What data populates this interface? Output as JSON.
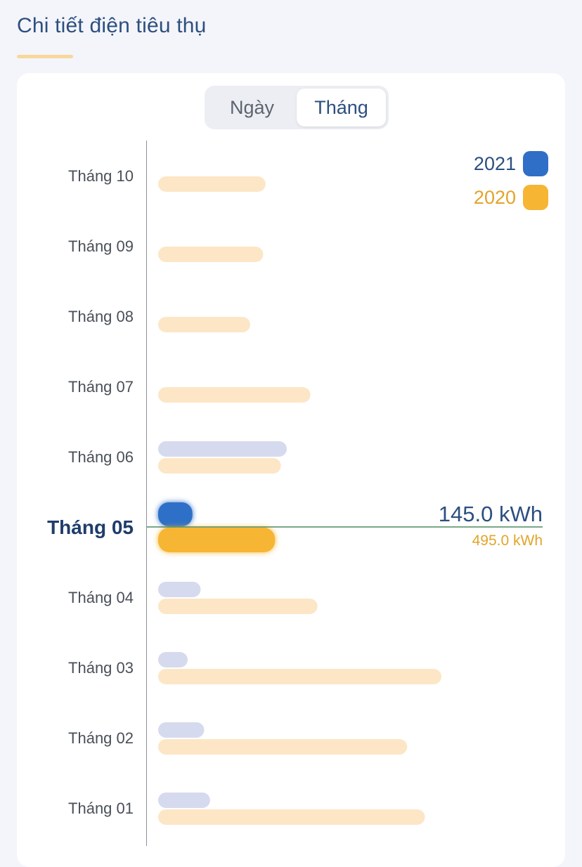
{
  "header": {
    "title": "Chi tiết điện tiêu thụ"
  },
  "segmented_control": {
    "options": [
      "Ngày",
      "Tháng"
    ],
    "selected": "Tháng"
  },
  "colors": {
    "series_2021": "#2f6fc7",
    "series_2020": "#f6b533",
    "series_2021_faded": "#d6daee",
    "series_2020_faded": "#fde6c6",
    "selected_line": "#4f8a5e",
    "title": "#2c4f7f"
  },
  "legend": [
    {
      "label": "2021",
      "color": "#2f6fc7"
    },
    {
      "label": "2020",
      "color": "#f6b533"
    }
  ],
  "selected": {
    "month": "Tháng 05",
    "value_2021_text": "145.0 kWh",
    "value_2020_text": "495.0 kWh"
  },
  "chart_data": {
    "type": "bar",
    "orientation": "horizontal",
    "unit": "kWh",
    "categories": [
      "Tháng 10",
      "Tháng 09",
      "Tháng 08",
      "Tháng 07",
      "Tháng 06",
      "Tháng 05",
      "Tháng 04",
      "Tháng 03",
      "Tháng 02",
      "Tháng 01"
    ],
    "series": [
      {
        "name": "2021",
        "values": [
          null,
          null,
          null,
          null,
          545,
          145,
          180,
          125,
          195,
          220
        ]
      },
      {
        "name": "2020",
        "values": [
          455,
          445,
          390,
          645,
          520,
          495,
          675,
          1200,
          1055,
          1130
        ]
      }
    ],
    "selected_category": "Tháng 05",
    "x_max": 1200,
    "legend_position": "top-right"
  }
}
